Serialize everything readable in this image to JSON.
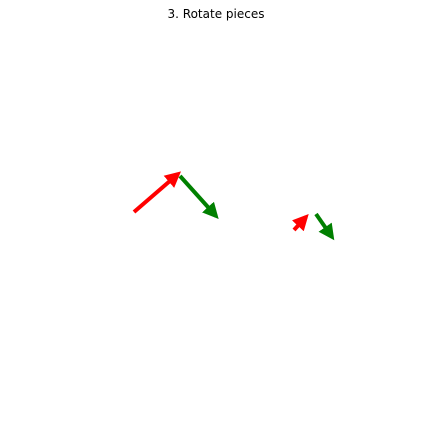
{
  "title": "3. Rotate pieces",
  "colors": {
    "piece_a": "#ff0000",
    "piece_b": "#008000",
    "background": "#ffffff"
  },
  "pieces": [
    {
      "id": "large-red",
      "color": "red",
      "icon": "arrow-head"
    },
    {
      "id": "large-green",
      "color": "green",
      "icon": "arrow-head"
    },
    {
      "id": "small-red",
      "color": "red",
      "icon": "arrow-head"
    },
    {
      "id": "small-green",
      "color": "green",
      "icon": "arrow-head"
    }
  ]
}
